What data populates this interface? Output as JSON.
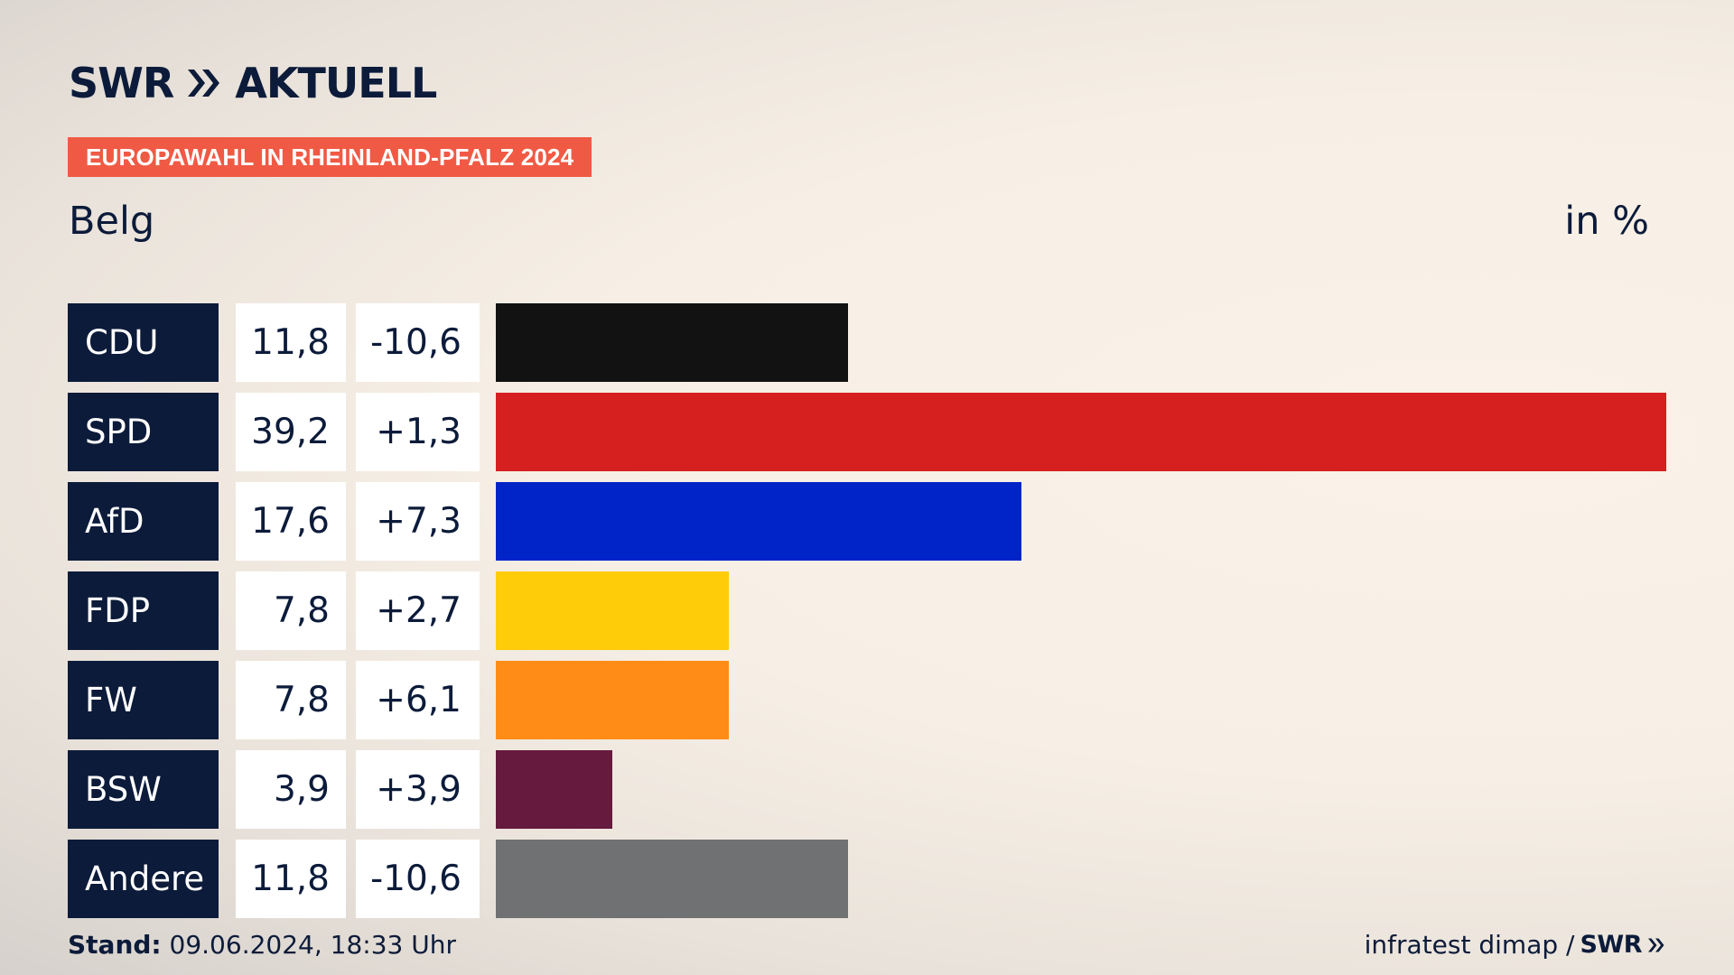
{
  "header": {
    "logo_text": "SWR",
    "logo_suffix": "AKTUELL",
    "banner": "EUROPAWAHL IN RHEINLAND-PFALZ 2024",
    "region": "Belg",
    "unit": "in %"
  },
  "colors": {
    "navy": "#0c1b3a",
    "banner": "#f05a44"
  },
  "chart_data": {
    "type": "bar",
    "orientation": "horizontal",
    "categories": [
      "CDU",
      "SPD",
      "AfD",
      "FDP",
      "FW",
      "BSW",
      "Andere"
    ],
    "values": [
      11.8,
      39.2,
      17.6,
      7.8,
      7.8,
      3.9,
      11.8
    ],
    "value_labels": [
      "11,8",
      "39,2",
      "17,6",
      "7,8",
      "7,8",
      "3,9",
      "11,8"
    ],
    "change_labels": [
      "-10,6",
      "+1,3",
      "+7,3",
      "+2,7",
      "+6,1",
      "+3,9",
      "-10,6"
    ],
    "bar_colors": [
      "#121212",
      "#d61f1f",
      "#0124c8",
      "#ffcc0a",
      "#ff8c16",
      "#661a3e",
      "#707173"
    ],
    "xlim": [
      0,
      39.2
    ]
  },
  "footer": {
    "stand_label": "Stand:",
    "stand_value": "09.06.2024, 18:33 Uhr",
    "source": "infratest dimap /",
    "source_logo": "SWR"
  }
}
